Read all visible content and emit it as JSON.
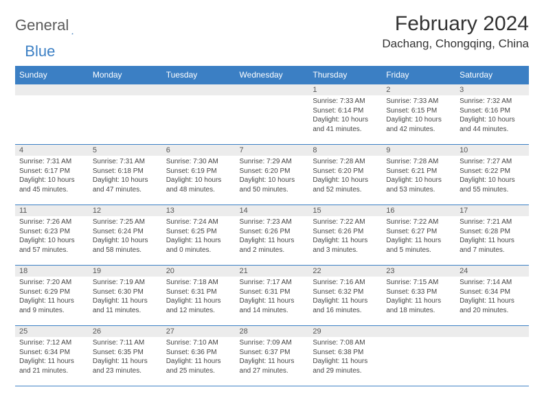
{
  "logo": {
    "text1": "General",
    "text2": "Blue"
  },
  "title": "February 2024",
  "subtitle": "Dachang, Chongqing, China",
  "colors": {
    "header_bg": "#3b7fc4",
    "header_fg": "#ffffff",
    "daynum_bg": "#ececec",
    "border": "#3b7fc4",
    "text": "#444444"
  },
  "day_names": [
    "Sunday",
    "Monday",
    "Tuesday",
    "Wednesday",
    "Thursday",
    "Friday",
    "Saturday"
  ],
  "weeks": [
    [
      null,
      null,
      null,
      null,
      {
        "n": "1",
        "sr": "7:33 AM",
        "ss": "6:14 PM",
        "dl": "10 hours and 41 minutes."
      },
      {
        "n": "2",
        "sr": "7:33 AM",
        "ss": "6:15 PM",
        "dl": "10 hours and 42 minutes."
      },
      {
        "n": "3",
        "sr": "7:32 AM",
        "ss": "6:16 PM",
        "dl": "10 hours and 44 minutes."
      }
    ],
    [
      {
        "n": "4",
        "sr": "7:31 AM",
        "ss": "6:17 PM",
        "dl": "10 hours and 45 minutes."
      },
      {
        "n": "5",
        "sr": "7:31 AM",
        "ss": "6:18 PM",
        "dl": "10 hours and 47 minutes."
      },
      {
        "n": "6",
        "sr": "7:30 AM",
        "ss": "6:19 PM",
        "dl": "10 hours and 48 minutes."
      },
      {
        "n": "7",
        "sr": "7:29 AM",
        "ss": "6:20 PM",
        "dl": "10 hours and 50 minutes."
      },
      {
        "n": "8",
        "sr": "7:28 AM",
        "ss": "6:20 PM",
        "dl": "10 hours and 52 minutes."
      },
      {
        "n": "9",
        "sr": "7:28 AM",
        "ss": "6:21 PM",
        "dl": "10 hours and 53 minutes."
      },
      {
        "n": "10",
        "sr": "7:27 AM",
        "ss": "6:22 PM",
        "dl": "10 hours and 55 minutes."
      }
    ],
    [
      {
        "n": "11",
        "sr": "7:26 AM",
        "ss": "6:23 PM",
        "dl": "10 hours and 57 minutes."
      },
      {
        "n": "12",
        "sr": "7:25 AM",
        "ss": "6:24 PM",
        "dl": "10 hours and 58 minutes."
      },
      {
        "n": "13",
        "sr": "7:24 AM",
        "ss": "6:25 PM",
        "dl": "11 hours and 0 minutes."
      },
      {
        "n": "14",
        "sr": "7:23 AM",
        "ss": "6:26 PM",
        "dl": "11 hours and 2 minutes."
      },
      {
        "n": "15",
        "sr": "7:22 AM",
        "ss": "6:26 PM",
        "dl": "11 hours and 3 minutes."
      },
      {
        "n": "16",
        "sr": "7:22 AM",
        "ss": "6:27 PM",
        "dl": "11 hours and 5 minutes."
      },
      {
        "n": "17",
        "sr": "7:21 AM",
        "ss": "6:28 PM",
        "dl": "11 hours and 7 minutes."
      }
    ],
    [
      {
        "n": "18",
        "sr": "7:20 AM",
        "ss": "6:29 PM",
        "dl": "11 hours and 9 minutes."
      },
      {
        "n": "19",
        "sr": "7:19 AM",
        "ss": "6:30 PM",
        "dl": "11 hours and 11 minutes."
      },
      {
        "n": "20",
        "sr": "7:18 AM",
        "ss": "6:31 PM",
        "dl": "11 hours and 12 minutes."
      },
      {
        "n": "21",
        "sr": "7:17 AM",
        "ss": "6:31 PM",
        "dl": "11 hours and 14 minutes."
      },
      {
        "n": "22",
        "sr": "7:16 AM",
        "ss": "6:32 PM",
        "dl": "11 hours and 16 minutes."
      },
      {
        "n": "23",
        "sr": "7:15 AM",
        "ss": "6:33 PM",
        "dl": "11 hours and 18 minutes."
      },
      {
        "n": "24",
        "sr": "7:14 AM",
        "ss": "6:34 PM",
        "dl": "11 hours and 20 minutes."
      }
    ],
    [
      {
        "n": "25",
        "sr": "7:12 AM",
        "ss": "6:34 PM",
        "dl": "11 hours and 21 minutes."
      },
      {
        "n": "26",
        "sr": "7:11 AM",
        "ss": "6:35 PM",
        "dl": "11 hours and 23 minutes."
      },
      {
        "n": "27",
        "sr": "7:10 AM",
        "ss": "6:36 PM",
        "dl": "11 hours and 25 minutes."
      },
      {
        "n": "28",
        "sr": "7:09 AM",
        "ss": "6:37 PM",
        "dl": "11 hours and 27 minutes."
      },
      {
        "n": "29",
        "sr": "7:08 AM",
        "ss": "6:38 PM",
        "dl": "11 hours and 29 minutes."
      },
      null,
      null
    ]
  ],
  "labels": {
    "sunrise": "Sunrise:",
    "sunset": "Sunset:",
    "daylight": "Daylight:"
  }
}
